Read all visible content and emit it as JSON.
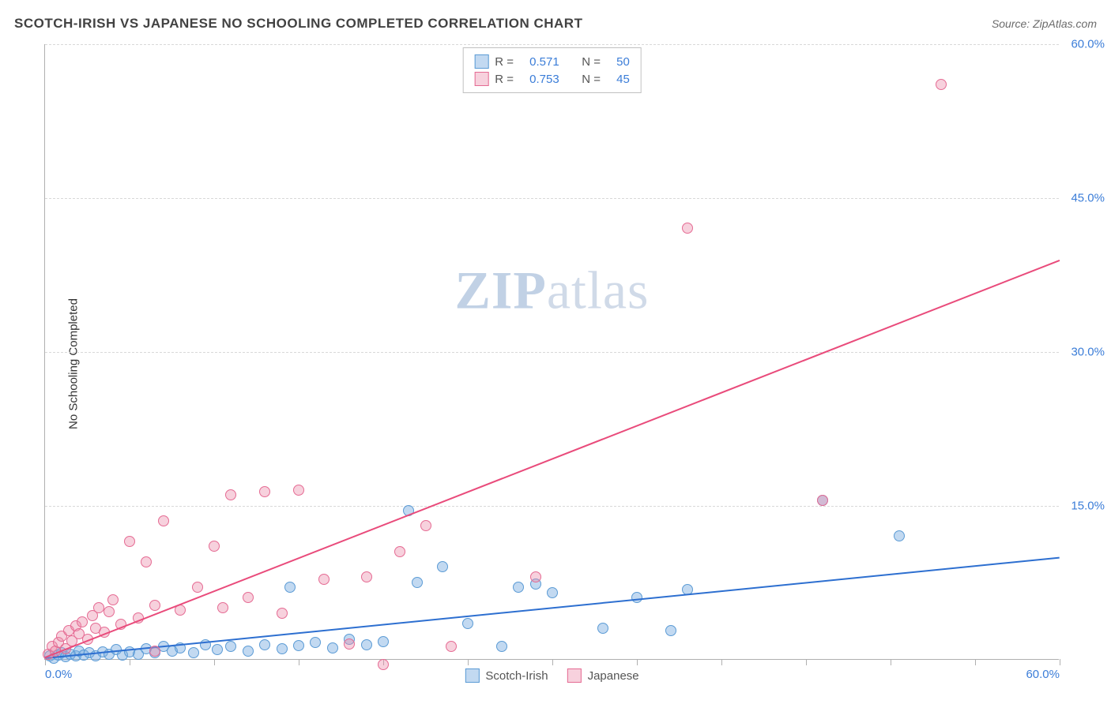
{
  "header": {
    "title": "SCOTCH-IRISH VS JAPANESE NO SCHOOLING COMPLETED CORRELATION CHART",
    "source_prefix": "Source:",
    "source_name": "ZipAtlas.com"
  },
  "chart": {
    "type": "scatter",
    "y_axis_label": "No Schooling Completed",
    "xlim": [
      0,
      60
    ],
    "ylim": [
      0,
      60
    ],
    "xtick_positions": [
      0,
      5,
      10,
      15,
      20,
      25,
      30,
      35,
      40,
      45,
      50,
      55,
      60
    ],
    "xtick_labels_visible": {
      "0": "0.0%",
      "60": "60.0%"
    },
    "ytick_positions": [
      15,
      30,
      45,
      60
    ],
    "ytick_labels": {
      "15": "15.0%",
      "30": "30.0%",
      "45": "45.0%",
      "60": "60.0%"
    },
    "grid_color": "#d8d8d8",
    "axis_color": "#b0b0b0",
    "background_color": "#ffffff",
    "tick_label_color": "#3b7dd8",
    "axis_label_color": "#333333",
    "watermark": {
      "zip": "ZIP",
      "atlas": "atlas"
    },
    "series": [
      {
        "name": "Scotch-Irish",
        "marker_fill": "rgba(120, 170, 225, 0.45)",
        "marker_stroke": "#5b9bd5",
        "marker_radius": 7,
        "trend_color": "#2d6fd0",
        "trend": {
          "x1": 0,
          "y1": 0.2,
          "x2": 60,
          "y2": 10.0
        },
        "R": "0.571",
        "N": "50",
        "points": [
          [
            0.3,
            0.3
          ],
          [
            0.5,
            0.1
          ],
          [
            0.8,
            0.4
          ],
          [
            1.0,
            0.6
          ],
          [
            1.2,
            0.2
          ],
          [
            1.5,
            0.5
          ],
          [
            1.8,
            0.3
          ],
          [
            2.0,
            0.8
          ],
          [
            2.3,
            0.4
          ],
          [
            2.6,
            0.6
          ],
          [
            3.0,
            0.3
          ],
          [
            3.4,
            0.7
          ],
          [
            3.8,
            0.5
          ],
          [
            4.2,
            0.9
          ],
          [
            4.6,
            0.4
          ],
          [
            5.0,
            0.7
          ],
          [
            5.5,
            0.5
          ],
          [
            6.0,
            1.0
          ],
          [
            6.5,
            0.6
          ],
          [
            7.0,
            1.2
          ],
          [
            7.5,
            0.8
          ],
          [
            8.0,
            1.1
          ],
          [
            8.8,
            0.6
          ],
          [
            9.5,
            1.4
          ],
          [
            10.2,
            0.9
          ],
          [
            11.0,
            1.2
          ],
          [
            12.0,
            0.8
          ],
          [
            13.0,
            1.4
          ],
          [
            14.0,
            1.0
          ],
          [
            14.5,
            7.0
          ],
          [
            15.0,
            1.3
          ],
          [
            16.0,
            1.6
          ],
          [
            17.0,
            1.1
          ],
          [
            18.0,
            1.9
          ],
          [
            19.0,
            1.4
          ],
          [
            20.0,
            1.7
          ],
          [
            21.5,
            14.5
          ],
          [
            22.0,
            7.5
          ],
          [
            23.5,
            9.0
          ],
          [
            25.0,
            3.5
          ],
          [
            27.0,
            1.2
          ],
          [
            28.0,
            7.0
          ],
          [
            30.0,
            6.5
          ],
          [
            33.0,
            3.0
          ],
          [
            35.0,
            6.0
          ],
          [
            37.0,
            2.8
          ],
          [
            38.0,
            6.8
          ],
          [
            46.0,
            15.5
          ],
          [
            50.5,
            12.0
          ],
          [
            29.0,
            7.3
          ]
        ]
      },
      {
        "name": "Japanese",
        "marker_fill": "rgba(235, 140, 170, 0.40)",
        "marker_stroke": "#e56b93",
        "marker_radius": 7,
        "trend_color": "#e94b7b",
        "trend": {
          "x1": 0,
          "y1": 0.3,
          "x2": 60,
          "y2": 39.0
        },
        "R": "0.753",
        "N": "45",
        "points": [
          [
            0.2,
            0.5
          ],
          [
            0.4,
            1.2
          ],
          [
            0.6,
            0.8
          ],
          [
            0.8,
            1.6
          ],
          [
            1.0,
            2.2
          ],
          [
            1.2,
            1.0
          ],
          [
            1.4,
            2.8
          ],
          [
            1.6,
            1.8
          ],
          [
            1.8,
            3.2
          ],
          [
            2.0,
            2.5
          ],
          [
            2.2,
            3.6
          ],
          [
            2.5,
            1.9
          ],
          [
            2.8,
            4.2
          ],
          [
            3.0,
            3.0
          ],
          [
            3.2,
            5.0
          ],
          [
            3.5,
            2.6
          ],
          [
            3.8,
            4.6
          ],
          [
            4.0,
            5.8
          ],
          [
            4.5,
            3.4
          ],
          [
            5.0,
            11.5
          ],
          [
            5.5,
            4.0
          ],
          [
            6.0,
            9.5
          ],
          [
            6.5,
            5.2
          ],
          [
            7.0,
            13.5
          ],
          [
            8.0,
            4.8
          ],
          [
            9.0,
            7.0
          ],
          [
            10.0,
            11.0
          ],
          [
            11.0,
            16.0
          ],
          [
            12.0,
            6.0
          ],
          [
            13.0,
            16.3
          ],
          [
            14.0,
            4.5
          ],
          [
            15.0,
            16.5
          ],
          [
            16.5,
            7.8
          ],
          [
            18.0,
            1.5
          ],
          [
            19.0,
            8.0
          ],
          [
            20.0,
            -0.5
          ],
          [
            21.0,
            10.5
          ],
          [
            22.5,
            13.0
          ],
          [
            24.0,
            1.2
          ],
          [
            29.0,
            8.0
          ],
          [
            38.0,
            42.0
          ],
          [
            46.0,
            15.5
          ],
          [
            53.0,
            56.0
          ],
          [
            10.5,
            5.0
          ],
          [
            6.5,
            0.8
          ]
        ]
      }
    ],
    "legend_top": {
      "border_color": "#c0c0c0",
      "text_color": "#555555",
      "value_color": "#3b7dd8",
      "r_label": "R =",
      "n_label": "N ="
    },
    "legend_bottom": {
      "items": [
        "Scotch-Irish",
        "Japanese"
      ]
    }
  }
}
